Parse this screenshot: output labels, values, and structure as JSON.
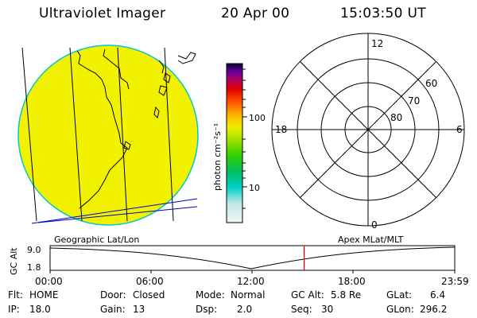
{
  "header": {
    "title": "Ultraviolet Imager",
    "date": "20 Apr 00",
    "time": "15:03:50 UT"
  },
  "colorbar": {
    "label": "photon cm⁻²s⁻¹",
    "ticks": [
      "100",
      "10"
    ]
  },
  "polar_plot": {
    "mlt_labels": [
      "12",
      "18",
      "6",
      "0"
    ],
    "lat_labels": [
      "60",
      "70",
      "80"
    ]
  },
  "map": {
    "disk_color": "#f2f200",
    "limb_color": "#00c8c8",
    "coast_color": "#0000cc"
  },
  "timeline": {
    "left_caption": "Geographic Lat/Lon",
    "right_caption": "Apex MLat/MLT",
    "y_axis_label": "GC Alt",
    "y_ticks": [
      "9.0",
      "1.8"
    ],
    "x_ticks": [
      "00:00",
      "06:00",
      "12:00",
      "18:00",
      "23:59"
    ],
    "current_time_marker_hours": 15.06,
    "marker_color": "#dd0000"
  },
  "status": {
    "flt_label": "Flt:",
    "flt_value": "HOME",
    "ip_label": "IP:",
    "ip_value": "18.0",
    "door_label": "Door:",
    "door_value": "Closed",
    "gain_label": "Gain:",
    "gain_value": "13",
    "mode_label": "Mode:",
    "mode_value": "Normal",
    "dsp_label": "Dsp:",
    "dsp_value": "2.0",
    "gcalt_label": "GC Alt:",
    "gcalt_value": "5.8 Re",
    "seq_label": "Seq:",
    "seq_value": "30",
    "glat_label": "GLat:",
    "glat_value": "6.4",
    "glon_label": "GLon:",
    "glon_value": "296.2"
  }
}
